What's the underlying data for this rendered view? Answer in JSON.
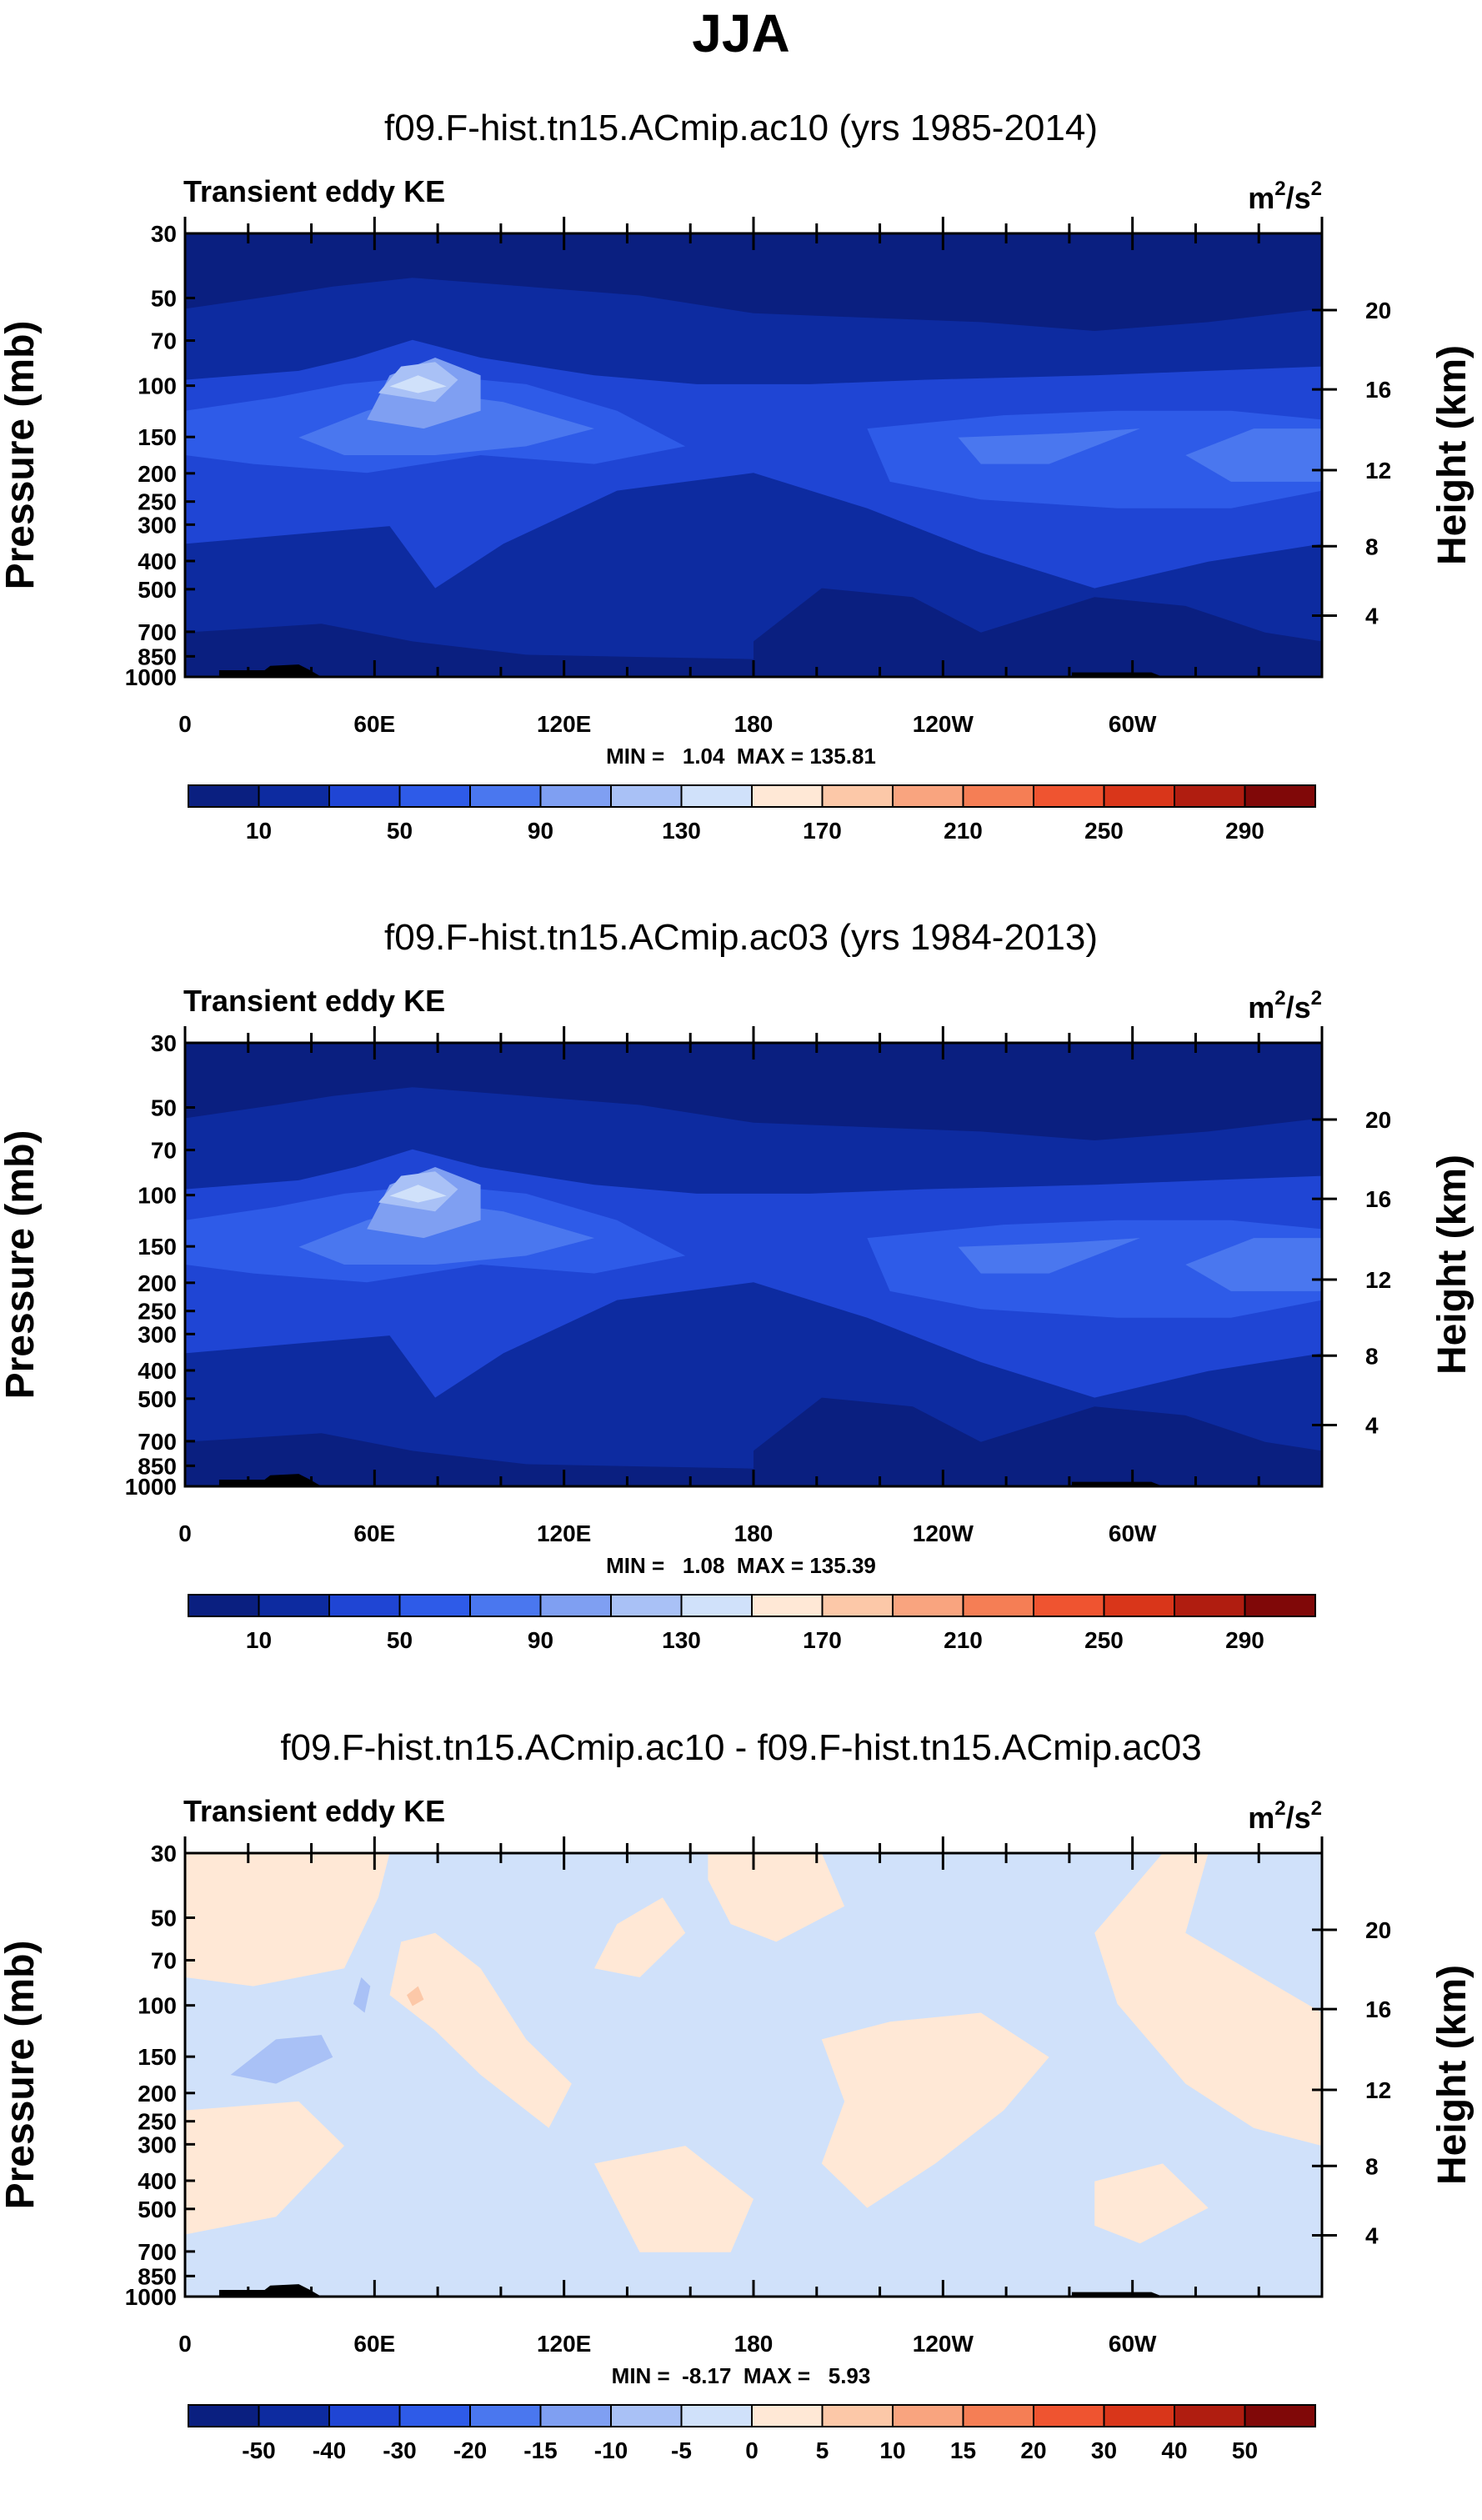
{
  "title": "JJA",
  "chart_data": [
    {
      "type": "contour",
      "title": "f09.F-hist.tn15.ACmip.ac10 (yrs 1985-2014)",
      "variable": "Transient eddy KE",
      "units": "m²/s²",
      "units_base": "m",
      "units_sup": "2",
      "units_mid": "/s",
      "ylabel": "Pressure (mb)",
      "ylabel_right": "Height (km)",
      "y_ticks": [
        "30",
        "50",
        "70",
        "100",
        "150",
        "200",
        "250",
        "300",
        "400",
        "500",
        "700",
        "850",
        "1000"
      ],
      "y_right_ticks": [
        "20",
        "16",
        "12",
        "8",
        "4"
      ],
      "x_ticks": [
        "0",
        "60E",
        "120E",
        "180",
        "120W",
        "60W"
      ],
      "stats": "MIN =   1.04  MAX = 135.81",
      "min": 1.04,
      "max": 135.81,
      "colorbar_labels": [
        "10",
        "50",
        "90",
        "130",
        "170",
        "210",
        "250",
        "290"
      ],
      "colors": [
        "#0a1f80",
        "#0d2ba0",
        "#1f45d4",
        "#2e5be8",
        "#4a77ef",
        "#7f9ff2",
        "#a9c1f6",
        "#d0e1fa",
        "#ffe8d6",
        "#fcc8a8",
        "#f9a47f",
        "#f57e55",
        "#ef5430",
        "#d9361a",
        "#b01d10",
        "#800808"
      ]
    },
    {
      "type": "contour",
      "title": "f09.F-hist.tn15.ACmip.ac03 (yrs 1984-2013)",
      "variable": "Transient eddy KE",
      "units": "m²/s²",
      "units_base": "m",
      "units_sup": "2",
      "units_mid": "/s",
      "ylabel": "Pressure (mb)",
      "ylabel_right": "Height (km)",
      "y_ticks": [
        "30",
        "50",
        "70",
        "100",
        "150",
        "200",
        "250",
        "300",
        "400",
        "500",
        "700",
        "850",
        "1000"
      ],
      "y_right_ticks": [
        "20",
        "16",
        "12",
        "8",
        "4"
      ],
      "x_ticks": [
        "0",
        "60E",
        "120E",
        "180",
        "120W",
        "60W"
      ],
      "stats": "MIN =   1.08  MAX = 135.39",
      "min": 1.08,
      "max": 135.39,
      "colorbar_labels": [
        "10",
        "50",
        "90",
        "130",
        "170",
        "210",
        "250",
        "290"
      ],
      "colors": [
        "#0a1f80",
        "#0d2ba0",
        "#1f45d4",
        "#2e5be8",
        "#4a77ef",
        "#7f9ff2",
        "#a9c1f6",
        "#d0e1fa",
        "#ffe8d6",
        "#fcc8a8",
        "#f9a47f",
        "#f57e55",
        "#ef5430",
        "#d9361a",
        "#b01d10",
        "#800808"
      ]
    },
    {
      "type": "contour",
      "title": "f09.F-hist.tn15.ACmip.ac10 - f09.F-hist.tn15.ACmip.ac03",
      "variable": "Transient eddy KE",
      "units": "m²/s²",
      "units_base": "m",
      "units_sup": "2",
      "units_mid": "/s",
      "ylabel": "Pressure (mb)",
      "ylabel_right": "Height (km)",
      "y_ticks": [
        "30",
        "50",
        "70",
        "100",
        "150",
        "200",
        "250",
        "300",
        "400",
        "500",
        "700",
        "850",
        "1000"
      ],
      "y_right_ticks": [
        "20",
        "16",
        "12",
        "8",
        "4"
      ],
      "x_ticks": [
        "0",
        "60E",
        "120E",
        "180",
        "120W",
        "60W"
      ],
      "stats": "MIN =  -8.17  MAX =   5.93",
      "min": -8.17,
      "max": 5.93,
      "colorbar_labels": [
        "-50",
        "-40",
        "-30",
        "-20",
        "-15",
        "-10",
        "-5",
        "0",
        "5",
        "10",
        "15",
        "20",
        "30",
        "40",
        "50"
      ],
      "colors": [
        "#0a1f80",
        "#0d2ba0",
        "#1f45d4",
        "#2e5be8",
        "#4a77ef",
        "#7f9ff2",
        "#a9c1f6",
        "#d0e1fa",
        "#ffe8d6",
        "#fcc8a8",
        "#f9a47f",
        "#f57e55",
        "#ef5430",
        "#d9361a",
        "#b01d10",
        "#800808"
      ]
    }
  ]
}
